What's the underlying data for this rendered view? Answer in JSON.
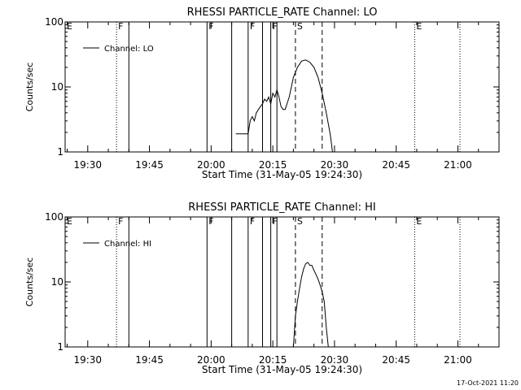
{
  "chart_data": [
    {
      "type": "line",
      "title": "RHESSI PARTICLE_RATE Channel: LO",
      "xlabel": "Start Time (31-May-05 19:24:30)",
      "ylabel": "Counts/sec",
      "yscale": "log",
      "ylim": [
        1,
        100
      ],
      "xlim": [
        "19:24:30",
        "21:10:00"
      ],
      "x_ticks": [
        "19:30",
        "19:45",
        "20:00",
        "20:15",
        "20:30",
        "20:45",
        "21:00"
      ],
      "y_ticks": [
        "1",
        "10",
        "100"
      ],
      "legend": {
        "position": "top-left"
      },
      "series": [
        {
          "name": "Channel: LO",
          "x": [
            "20:06:00",
            "20:09:00",
            "20:09:30",
            "20:10:00",
            "20:10:30",
            "20:11:00",
            "20:11:30",
            "20:12:00",
            "20:12:30",
            "20:13:00",
            "20:13:30",
            "20:14:00",
            "20:14:30",
            "20:15:00",
            "20:15:30",
            "20:16:00",
            "20:16:30",
            "20:17:00",
            "20:17:30",
            "20:18:00",
            "20:19:00",
            "20:20:00",
            "20:21:00",
            "20:22:00",
            "20:23:00",
            "20:24:00",
            "20:25:00",
            "20:26:00",
            "20:27:00",
            "20:28:00",
            "20:29:00",
            "20:29:30"
          ],
          "values": [
            1.9,
            1.9,
            3,
            3.5,
            3,
            4,
            4.5,
            5,
            5.5,
            6.5,
            6,
            7,
            5.5,
            8,
            7,
            9,
            7,
            5,
            4.5,
            4.5,
            7,
            14,
            20,
            25,
            26,
            24,
            20,
            14,
            8,
            4,
            1.8,
            1
          ]
        }
      ],
      "annotations": [
        {
          "label": "E",
          "time": "19:24:30",
          "style": "dotted"
        },
        {
          "label": "F",
          "time": "19:37:00",
          "style": "dotted"
        },
        {
          "label": "",
          "time": "19:40:00",
          "style": "solid"
        },
        {
          "label": "F",
          "time": "19:59:00",
          "style": "solid"
        },
        {
          "label": "",
          "time": "20:05:00",
          "style": "solid"
        },
        {
          "label": "F",
          "time": "20:09:00",
          "style": "solid"
        },
        {
          "label": "",
          "time": "20:12:30",
          "style": "solid"
        },
        {
          "label": "F",
          "time": "20:14:30",
          "style": "solid"
        },
        {
          "label": "",
          "time": "20:16:00",
          "style": "solid"
        },
        {
          "label": "S",
          "time": "20:20:30",
          "style": "dashed"
        },
        {
          "label": "",
          "time": "20:27:00",
          "style": "dashed"
        },
        {
          "label": "E",
          "time": "20:49:30",
          "style": "dotted"
        },
        {
          "label": "",
          "time": "21:00:30",
          "style": "dotted"
        }
      ]
    },
    {
      "type": "line",
      "title": "RHESSI PARTICLE_RATE Channel: HI",
      "xlabel": "Start Time (31-May-05 19:24:30)",
      "ylabel": "Counts/sec",
      "yscale": "log",
      "ylim": [
        1,
        100
      ],
      "xlim": [
        "19:24:30",
        "21:10:00"
      ],
      "x_ticks": [
        "19:30",
        "19:45",
        "20:00",
        "20:15",
        "20:30",
        "20:45",
        "21:00"
      ],
      "y_ticks": [
        "1",
        "10",
        "100"
      ],
      "legend": {
        "position": "top-left"
      },
      "series": [
        {
          "name": "Channel: HI",
          "x": [
            "20:20:00",
            "20:20:30",
            "20:21:00",
            "20:21:30",
            "20:22:00",
            "20:22:30",
            "20:23:00",
            "20:23:30",
            "20:24:00",
            "20:24:30",
            "20:25:00",
            "20:25:30",
            "20:26:00",
            "20:26:30",
            "20:27:00",
            "20:27:30",
            "20:28:00",
            "20:28:30"
          ],
          "values": [
            1,
            3,
            5,
            8,
            12,
            16,
            19,
            20,
            18,
            18,
            15,
            13,
            11,
            9,
            7,
            5,
            2,
            1
          ]
        }
      ],
      "annotations": [
        {
          "label": "E",
          "time": "19:24:30",
          "style": "dotted"
        },
        {
          "label": "F",
          "time": "19:37:00",
          "style": "dotted"
        },
        {
          "label": "",
          "time": "19:40:00",
          "style": "solid"
        },
        {
          "label": "F",
          "time": "19:59:00",
          "style": "solid"
        },
        {
          "label": "",
          "time": "20:05:00",
          "style": "solid"
        },
        {
          "label": "F",
          "time": "20:09:00",
          "style": "solid"
        },
        {
          "label": "",
          "time": "20:12:30",
          "style": "solid"
        },
        {
          "label": "F",
          "time": "20:14:30",
          "style": "solid"
        },
        {
          "label": "",
          "time": "20:16:00",
          "style": "solid"
        },
        {
          "label": "S",
          "time": "20:20:30",
          "style": "dashed"
        },
        {
          "label": "",
          "time": "20:27:00",
          "style": "dashed"
        },
        {
          "label": "E",
          "time": "20:49:30",
          "style": "dotted"
        },
        {
          "label": "",
          "time": "21:00:30",
          "style": "dotted"
        }
      ]
    }
  ],
  "footer": {
    "timestamp": "17-Oct-2021 11:20"
  },
  "colors": {
    "background": "#ffffff",
    "ink": "#000000"
  }
}
